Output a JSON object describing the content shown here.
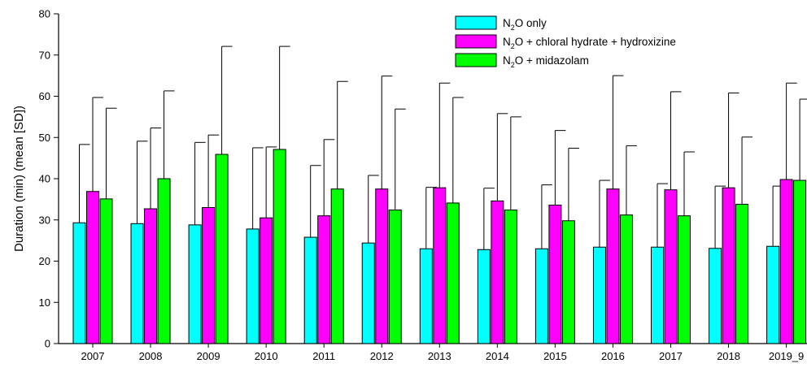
{
  "chart_data": {
    "type": "bar",
    "ylabel": "Duration (min) (mean [SD])",
    "xlabel": "",
    "ylim": [
      0,
      80
    ],
    "yticks": [
      0,
      10,
      20,
      30,
      40,
      50,
      60,
      70,
      80
    ],
    "categories": [
      "2007",
      "2008",
      "2009",
      "2010",
      "2011",
      "2012",
      "2013",
      "2014",
      "2015",
      "2016",
      "2017",
      "2018",
      "2019_9"
    ],
    "legend_position": "top-right",
    "error_bars": "SD (upper)",
    "series": [
      {
        "name": "N2O only",
        "legend_parts": [
          "N",
          "2",
          "O only"
        ],
        "color": "#00ffff",
        "values": [
          29.3,
          29.1,
          28.8,
          27.8,
          25.8,
          24.4,
          23.0,
          22.8,
          23.0,
          23.4,
          23.4,
          23.1,
          23.6
        ],
        "upper": [
          48.3,
          49.1,
          48.8,
          47.5,
          43.2,
          40.8,
          37.9,
          37.7,
          38.5,
          39.6,
          38.8,
          38.2,
          38.2
        ]
      },
      {
        "name": "N2O + chloral hydrate + hydroxizine",
        "legend_parts": [
          "N",
          "2",
          "O + chloral hydrate + hydroxizine"
        ],
        "color": "#ff00ff",
        "values": [
          36.9,
          32.7,
          33.0,
          30.5,
          31.0,
          37.5,
          37.8,
          34.6,
          33.6,
          37.5,
          37.3,
          37.8,
          39.8
        ],
        "upper": [
          59.7,
          52.3,
          50.6,
          47.7,
          49.5,
          64.9,
          63.2,
          55.8,
          51.7,
          65.0,
          61.1,
          60.8,
          63.2
        ]
      },
      {
        "name": "N2O + midazolam",
        "legend_parts": [
          "N",
          "2",
          "O + midazolam"
        ],
        "color": "#00ff00",
        "values": [
          35.1,
          40.0,
          45.9,
          47.1,
          37.5,
          32.4,
          34.1,
          32.4,
          29.8,
          31.2,
          31.0,
          33.8,
          39.6
        ],
        "upper": [
          57.1,
          61.3,
          72.1,
          72.1,
          63.6,
          56.9,
          59.7,
          55.0,
          47.4,
          48.0,
          46.5,
          50.1,
          59.3
        ]
      }
    ]
  }
}
